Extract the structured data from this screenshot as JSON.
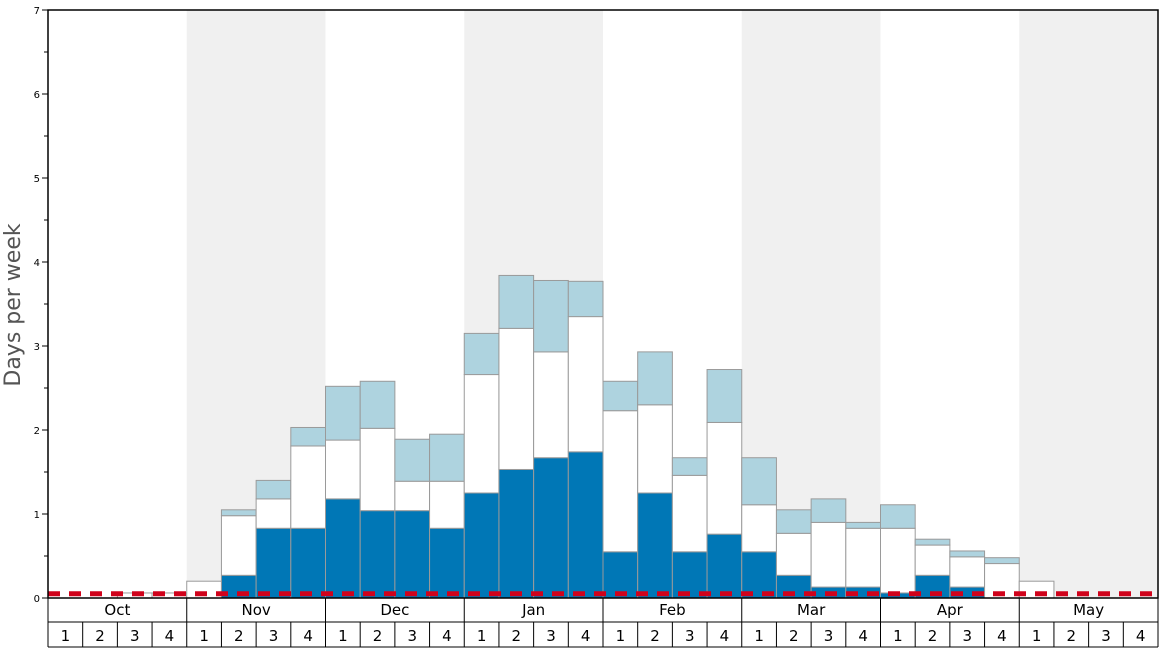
{
  "chart_data": {
    "type": "bar",
    "stacked": true,
    "ylabel": "Days per week",
    "ylim": [
      0,
      7
    ],
    "yticks": [
      "0",
      "1",
      "2",
      "3",
      "4",
      "5",
      "6",
      "7"
    ],
    "months": [
      "Oct",
      "Nov",
      "Dec",
      "Jan",
      "Feb",
      "Mar",
      "Apr",
      "May"
    ],
    "weeks": [
      "1",
      "2",
      "3",
      "4"
    ],
    "series": [
      {
        "color": "#0077b6",
        "values": [
          0,
          0,
          0,
          0,
          0,
          0.27,
          0.83,
          0.83,
          1.18,
          1.04,
          1.04,
          0.83,
          1.25,
          1.53,
          1.67,
          1.74,
          0.55,
          1.25,
          0.55,
          0.76,
          0.55,
          0.27,
          0.13,
          0.13,
          0.06,
          0.27,
          0.13,
          0,
          0,
          0,
          0,
          0
        ]
      },
      {
        "color": "#ffffff",
        "values": [
          0,
          0,
          0.06,
          0.06,
          0.2,
          0.71,
          0.35,
          0.98,
          0.7,
          0.98,
          0.35,
          0.56,
          1.41,
          1.68,
          1.26,
          1.61,
          1.68,
          1.05,
          0.91,
          1.33,
          0.56,
          0.5,
          0.77,
          0.7,
          0.77,
          0.36,
          0.36,
          0.41,
          0.2,
          0,
          0,
          0
        ]
      },
      {
        "color": "#aed3df",
        "values": [
          0,
          0,
          0,
          0,
          0,
          0.07,
          0.22,
          0.22,
          0.64,
          0.56,
          0.5,
          0.56,
          0.49,
          0.63,
          0.85,
          0.42,
          0.35,
          0.63,
          0.21,
          0.63,
          0.56,
          0.28,
          0.28,
          0.07,
          0.28,
          0.07,
          0.07,
          0.07,
          0,
          0,
          0,
          0
        ]
      }
    ],
    "reference_line": {
      "value": 0.05,
      "color": "#d0021b",
      "style": "dashed"
    },
    "alternate_month_shading": "#f0f0f0",
    "grid": false,
    "legend": "none"
  }
}
